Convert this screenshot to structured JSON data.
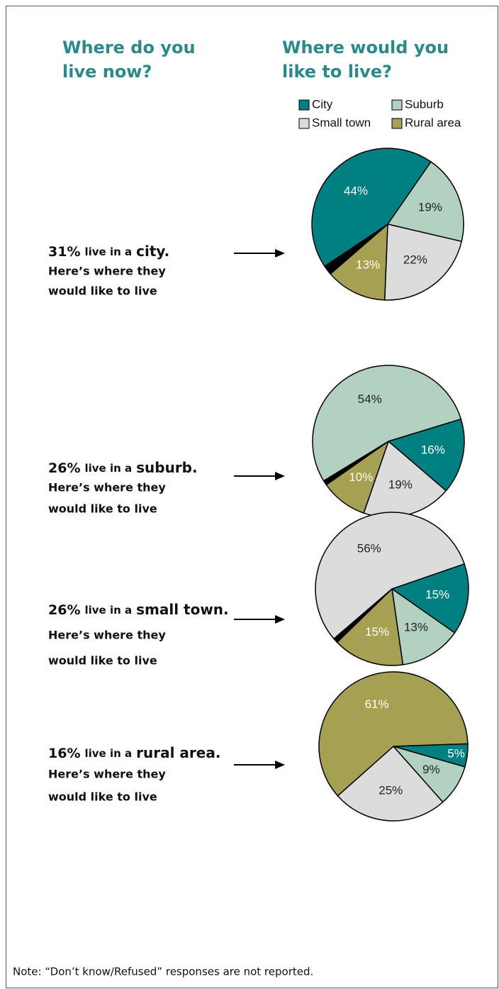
{
  "headings": {
    "left": [
      "Where do you",
      "live now?"
    ],
    "right": [
      "Where would you",
      "like to live?"
    ]
  },
  "rows": [
    {
      "lead": "31%",
      "mid": "live in a",
      "place": "city",
      "end": ".",
      "line2": "Here’s where they",
      "line3": "would like to live"
    },
    {
      "lead": "26%",
      "mid": "live in a",
      "place": "suburb",
      "end": ".",
      "line2": "Here’s where they",
      "line3": "would like to live"
    },
    {
      "lead": "26%",
      "mid": "live in a",
      "place": "small town",
      "end": ".",
      "line2": "Here’s where they",
      "line3": "would like to live"
    },
    {
      "lead": "16%",
      "mid": "live in a",
      "place": "rural area",
      "end": ".",
      "line2": "Here’s where they",
      "line3": "would like to live"
    }
  ],
  "note": "Note: “Don’t know/Refused” responses are not reported.",
  "chart_data": [
    {
      "type": "pie",
      "categories": [
        "Suburb",
        "Small town",
        "Rural area",
        null,
        "City"
      ],
      "values": [
        19,
        22,
        13,
        2,
        44
      ],
      "value_labels": [
        "19%",
        "22%",
        "13%",
        null,
        "44%"
      ],
      "colors": [
        "#b3d1c1",
        "#dcdcdc",
        "#a6a052",
        "#000000",
        "#008080"
      ]
    },
    {
      "type": "pie",
      "categories": [
        "City",
        "Small town",
        "Rural area",
        null,
        "Suburb"
      ],
      "values": [
        16,
        19,
        10,
        1,
        54
      ],
      "value_labels": [
        "16%",
        "19%",
        "10%",
        null,
        "54%"
      ],
      "colors": [
        "#008080",
        "#dcdcdc",
        "#a6a052",
        "#000000",
        "#b3d1c1"
      ]
    },
    {
      "type": "pie",
      "categories": [
        "City",
        "Suburb",
        "Rural area",
        null,
        "Small town"
      ],
      "values": [
        15,
        13,
        15,
        1,
        56
      ],
      "value_labels": [
        "15%",
        "13%",
        "15%",
        null,
        "56%"
      ],
      "colors": [
        "#008080",
        "#b3d1c1",
        "#a6a052",
        "#000000",
        "#dcdcdc"
      ]
    },
    {
      "type": "pie",
      "categories": [
        "City",
        "Suburb",
        "Small town",
        "Rural area"
      ],
      "values": [
        5,
        9,
        25,
        61
      ],
      "value_labels": [
        "5%",
        "9%",
        "25%",
        "61%"
      ],
      "colors": [
        "#008080",
        "#b3d1c1",
        "#dcdcdc",
        "#a6a052"
      ]
    }
  ]
}
